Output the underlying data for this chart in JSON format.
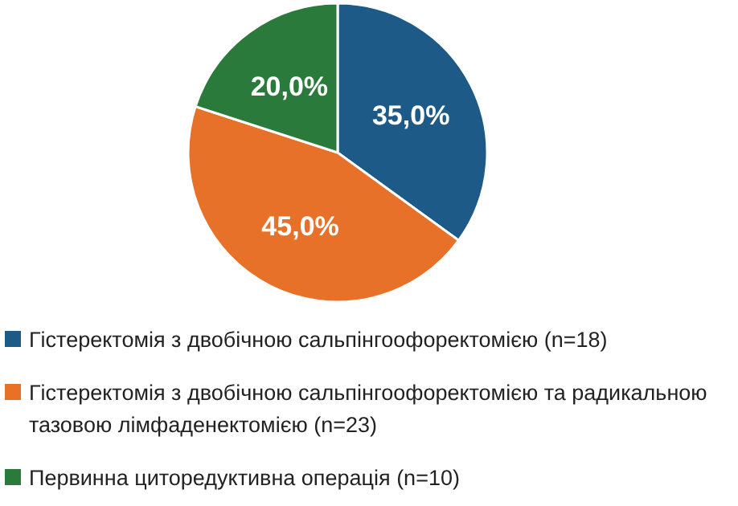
{
  "chart_data": {
    "type": "pie",
    "categories": [
      "Гістеректомія з двобічною сальпінгоофоректомією (n=18)",
      "Гістеректомія з двобічною сальпінгоофоректомією та радикальною тазовою лімфаденектомією (n=23)",
      "Первинна циторедуктивна операція (n=10)"
    ],
    "values": [
      35,
      45,
      20
    ],
    "colors": [
      "#1d5a87",
      "#e8712a",
      "#2a7a3b"
    ],
    "value_labels": [
      "35,0%",
      "45,0%",
      "20,0%"
    ],
    "legend": "bottom"
  }
}
